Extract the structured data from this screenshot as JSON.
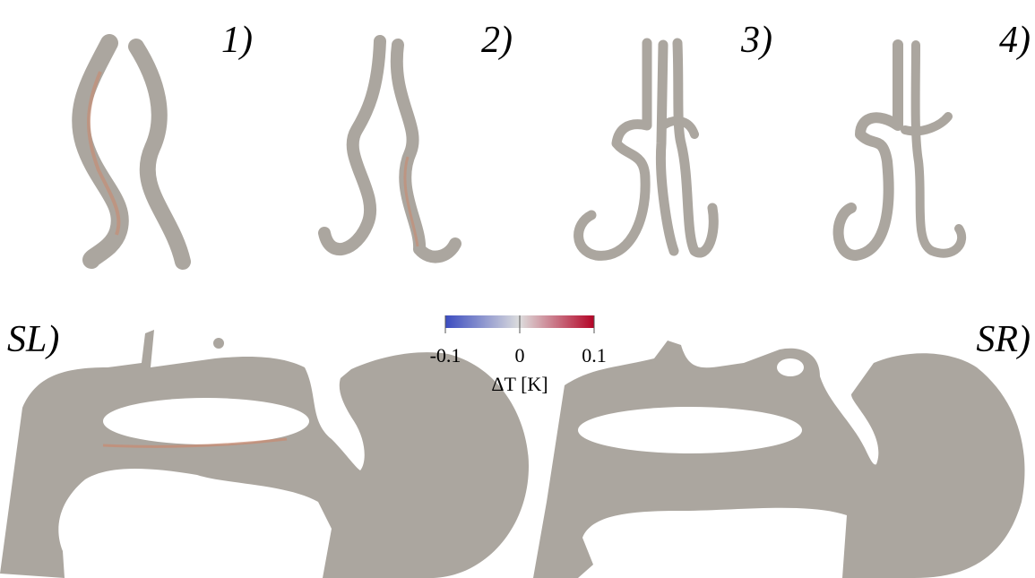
{
  "panels": [
    {
      "label": "1)"
    },
    {
      "label": "2)"
    },
    {
      "label": "3)"
    },
    {
      "label": "4)"
    },
    {
      "label": "SL)"
    },
    {
      "label": "SR)"
    }
  ],
  "colorbar": {
    "label": "ΔT [K]",
    "range": [
      -0.1,
      0.1
    ],
    "ticks": [
      -0.1,
      0,
      0.1
    ],
    "colors": [
      "#3b4cc0",
      "#dddddd",
      "#b40426"
    ]
  }
}
